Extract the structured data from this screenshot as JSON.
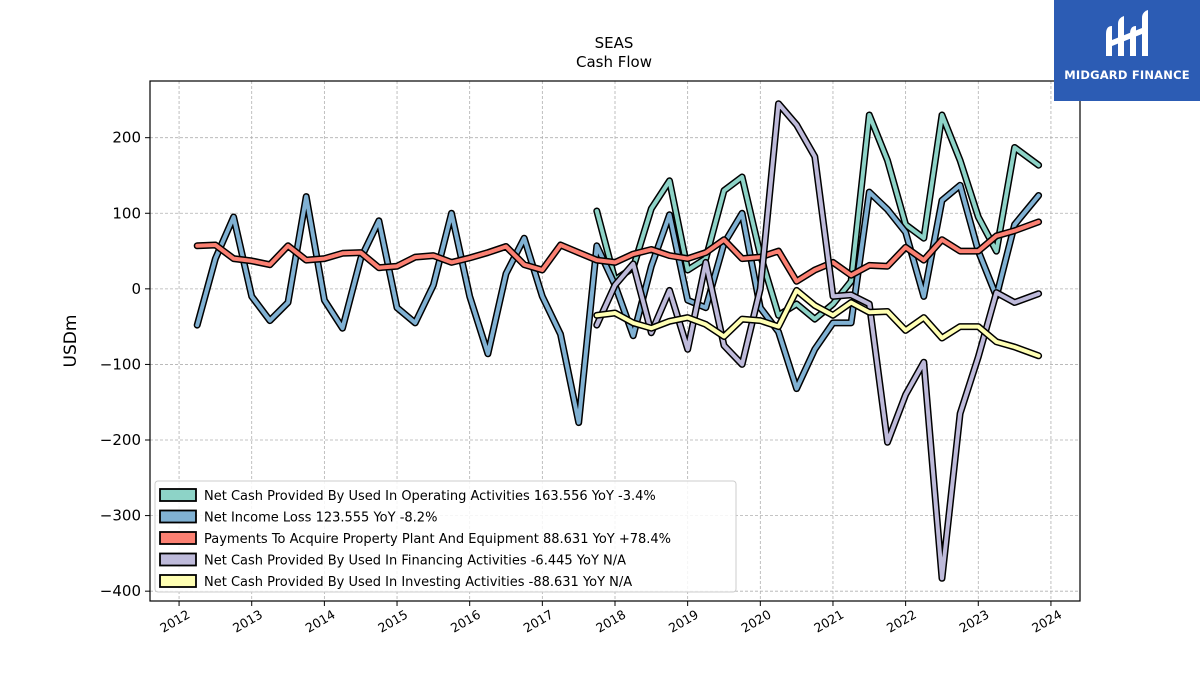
{
  "brand": {
    "name": "MIDGARD FINANCE",
    "icon": "mf-monogram-icon",
    "bg_color": "#2c5cb4"
  },
  "chart_data": {
    "type": "line",
    "title": "SEAS",
    "subtitle": "Cash Flow",
    "xlabel": "",
    "ylabel": "USDm",
    "xlim": [
      2011.6,
      2024.4
    ],
    "ylim": [
      -413,
      275
    ],
    "x_ticks": [
      "2012",
      "2013",
      "2014",
      "2015",
      "2016",
      "2017",
      "2018",
      "2019",
      "2020",
      "2021",
      "2022",
      "2023",
      "2024"
    ],
    "y_ticks": [
      -400,
      -300,
      -200,
      -100,
      0,
      100,
      200
    ],
    "y_tick_labels": [
      "−400",
      "−300",
      "−200",
      "−100",
      "0",
      "100",
      "200"
    ],
    "grid": true,
    "legend_position": "lower-left",
    "series": [
      {
        "name": "Net Cash Provided By Used In Operating Activities",
        "legend_label": "Net Cash Provided By Used In Operating Activities  163.556 YoY -3.4%",
        "color": "#8dd3c7",
        "points": [
          [
            2017.75,
            103
          ],
          [
            2018.0,
            12
          ],
          [
            2018.25,
            28
          ],
          [
            2018.5,
            106
          ],
          [
            2018.75,
            143
          ],
          [
            2019.0,
            25
          ],
          [
            2019.25,
            40
          ],
          [
            2019.5,
            130
          ],
          [
            2019.75,
            148
          ],
          [
            2020.0,
            45
          ],
          [
            2020.25,
            -35
          ],
          [
            2020.5,
            -20
          ],
          [
            2020.75,
            -40
          ],
          [
            2021.0,
            -20
          ],
          [
            2021.25,
            10
          ],
          [
            2021.5,
            230
          ],
          [
            2021.75,
            170
          ],
          [
            2022.0,
            85
          ],
          [
            2022.25,
            67
          ],
          [
            2022.5,
            230
          ],
          [
            2022.75,
            170
          ],
          [
            2023.0,
            95
          ],
          [
            2023.25,
            50
          ],
          [
            2023.5,
            187
          ],
          [
            2023.83,
            163.556
          ]
        ]
      },
      {
        "name": "Net Income Loss",
        "legend_label": "Net Income Loss  123.555 YoY -8.2%",
        "color": "#80b1d3",
        "points": [
          [
            2012.25,
            -48
          ],
          [
            2012.5,
            40
          ],
          [
            2012.75,
            95
          ],
          [
            2013.0,
            -10
          ],
          [
            2013.25,
            -42
          ],
          [
            2013.5,
            -18
          ],
          [
            2013.75,
            122
          ],
          [
            2014.0,
            -15
          ],
          [
            2014.25,
            -52
          ],
          [
            2014.5,
            40
          ],
          [
            2014.75,
            90
          ],
          [
            2015.0,
            -25
          ],
          [
            2015.25,
            -45
          ],
          [
            2015.5,
            5
          ],
          [
            2015.75,
            100
          ],
          [
            2016.0,
            -10
          ],
          [
            2016.25,
            -86
          ],
          [
            2016.5,
            20
          ],
          [
            2016.75,
            67
          ],
          [
            2017.0,
            -10
          ],
          [
            2017.25,
            -60
          ],
          [
            2017.5,
            -177
          ],
          [
            2017.75,
            57
          ],
          [
            2018.0,
            5
          ],
          [
            2018.25,
            -62
          ],
          [
            2018.5,
            30
          ],
          [
            2018.75,
            98
          ],
          [
            2019.0,
            -15
          ],
          [
            2019.25,
            -25
          ],
          [
            2019.5,
            60
          ],
          [
            2019.75,
            100
          ],
          [
            2020.0,
            -25
          ],
          [
            2020.25,
            -57
          ],
          [
            2020.5,
            -132
          ],
          [
            2020.75,
            -80
          ],
          [
            2021.0,
            -45
          ],
          [
            2021.25,
            -45
          ],
          [
            2021.5,
            128
          ],
          [
            2021.75,
            105
          ],
          [
            2022.0,
            75
          ],
          [
            2022.25,
            -10
          ],
          [
            2022.5,
            117
          ],
          [
            2022.75,
            137
          ],
          [
            2023.0,
            50
          ],
          [
            2023.25,
            -10
          ],
          [
            2023.5,
            85
          ],
          [
            2023.83,
            123.555
          ]
        ]
      },
      {
        "name": "Payments To Acquire Property Plant And Equipment",
        "legend_label": "Payments To Acquire Property Plant And Equipment  88.631 YoY +78.4%",
        "color": "#fb8072",
        "points": [
          [
            2012.25,
            57
          ],
          [
            2012.5,
            58
          ],
          [
            2012.75,
            40
          ],
          [
            2013.0,
            37
          ],
          [
            2013.25,
            32
          ],
          [
            2013.5,
            57
          ],
          [
            2013.75,
            38
          ],
          [
            2014.0,
            40
          ],
          [
            2014.25,
            47
          ],
          [
            2014.5,
            48
          ],
          [
            2014.75,
            28
          ],
          [
            2015.0,
            30
          ],
          [
            2015.25,
            42
          ],
          [
            2015.5,
            44
          ],
          [
            2015.75,
            35
          ],
          [
            2016.0,
            41
          ],
          [
            2016.25,
            48
          ],
          [
            2016.5,
            56
          ],
          [
            2016.75,
            32
          ],
          [
            2017.0,
            25
          ],
          [
            2017.25,
            58
          ],
          [
            2017.5,
            48
          ],
          [
            2017.75,
            38
          ],
          [
            2018.0,
            35
          ],
          [
            2018.25,
            46
          ],
          [
            2018.5,
            52
          ],
          [
            2018.75,
            44
          ],
          [
            2019.0,
            40
          ],
          [
            2019.25,
            48
          ],
          [
            2019.5,
            65
          ],
          [
            2019.75,
            40
          ],
          [
            2020.0,
            42
          ],
          [
            2020.25,
            50
          ],
          [
            2020.5,
            10
          ],
          [
            2020.75,
            25
          ],
          [
            2021.0,
            35
          ],
          [
            2021.25,
            18
          ],
          [
            2021.5,
            31
          ],
          [
            2021.75,
            30
          ],
          [
            2022.0,
            55
          ],
          [
            2022.25,
            38
          ],
          [
            2022.5,
            65
          ],
          [
            2022.75,
            50
          ],
          [
            2023.0,
            50
          ],
          [
            2023.25,
            70
          ],
          [
            2023.5,
            77
          ],
          [
            2023.83,
            88.631
          ]
        ]
      },
      {
        "name": "Net Cash Provided By Used In Financing Activities",
        "legend_label": "Net Cash Provided By Used In Financing Activities  -6.445 YoY N/A",
        "color": "#bebada",
        "points": [
          [
            2017.75,
            -48
          ],
          [
            2018.0,
            5
          ],
          [
            2018.25,
            33
          ],
          [
            2018.5,
            -58
          ],
          [
            2018.75,
            -2
          ],
          [
            2019.0,
            -80
          ],
          [
            2019.25,
            35
          ],
          [
            2019.5,
            -75
          ],
          [
            2019.75,
            -100
          ],
          [
            2020.0,
            0
          ],
          [
            2020.25,
            245
          ],
          [
            2020.5,
            217
          ],
          [
            2020.75,
            175
          ],
          [
            2021.0,
            -10
          ],
          [
            2021.25,
            -8
          ],
          [
            2021.5,
            -20
          ],
          [
            2021.75,
            -203
          ],
          [
            2022.0,
            -140
          ],
          [
            2022.25,
            -97
          ],
          [
            2022.5,
            -383
          ],
          [
            2022.75,
            -165
          ],
          [
            2023.0,
            -90
          ],
          [
            2023.25,
            -5
          ],
          [
            2023.5,
            -18
          ],
          [
            2023.83,
            -6.445
          ]
        ]
      },
      {
        "name": "Net Cash Provided By Used In Investing Activities",
        "legend_label": "Net Cash Provided By Used In Investing Activities  -88.631 YoY N/A",
        "color": "#ffffb3",
        "points": [
          [
            2017.75,
            -35
          ],
          [
            2018.0,
            -32
          ],
          [
            2018.25,
            -45
          ],
          [
            2018.5,
            -52
          ],
          [
            2018.75,
            -43
          ],
          [
            2019.0,
            -38
          ],
          [
            2019.25,
            -47
          ],
          [
            2019.5,
            -63
          ],
          [
            2019.75,
            -40
          ],
          [
            2020.0,
            -42
          ],
          [
            2020.25,
            -50
          ],
          [
            2020.5,
            -2
          ],
          [
            2020.75,
            -22
          ],
          [
            2021.0,
            -35
          ],
          [
            2021.25,
            -18
          ],
          [
            2021.5,
            -31
          ],
          [
            2021.75,
            -30
          ],
          [
            2022.0,
            -55
          ],
          [
            2022.25,
            -38
          ],
          [
            2022.5,
            -65
          ],
          [
            2022.75,
            -50
          ],
          [
            2023.0,
            -50
          ],
          [
            2023.25,
            -70
          ],
          [
            2023.5,
            -77
          ],
          [
            2023.83,
            -88.631
          ]
        ]
      }
    ]
  }
}
